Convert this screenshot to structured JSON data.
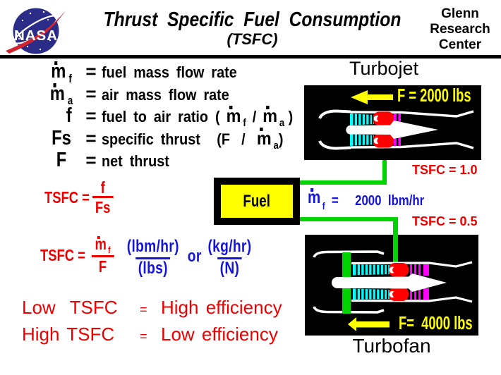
{
  "colors": {
    "text_red": "#ee0000",
    "text_blue": "#1414dd",
    "fuel_line_green": "#00d400",
    "engine_yellow": "#ffff00",
    "compressor_cyan": "#00ffff",
    "combustor_red": "#ff0000",
    "turbine_magenta": "#ff00ff",
    "logo_navy": "#2b2b88",
    "logo_swoosh_red": "#cf2330"
  },
  "header": {
    "logo_text": "NASA",
    "title": "Thrust  Specific  Fuel  Consumption",
    "subtitle": "(TSFC)",
    "org_lines": {
      "l1": "Glenn",
      "l2": "Research",
      "l3": "Center"
    }
  },
  "definitions": [
    {
      "sym": [
        {
          "t": "mdot",
          "base": "m",
          "sub": "f"
        }
      ],
      "eq": "=",
      "rhs": [
        {
          "t": "txt",
          "v": "fuel mass flow rate"
        }
      ]
    },
    {
      "sym": [
        {
          "t": "mdot",
          "base": "m",
          "sub": "a"
        }
      ],
      "eq": "=",
      "rhs": [
        {
          "t": "txt",
          "v": "air mass flow rate"
        }
      ]
    },
    {
      "sym": [
        {
          "t": "txt",
          "v": "f"
        }
      ],
      "eq": "=",
      "rhs": [
        {
          "t": "txt",
          "v": "fuel to air ratio ("
        },
        {
          "t": "gap",
          "w": 10
        },
        {
          "t": "mdot",
          "base": "m",
          "sub": "f"
        },
        {
          "t": "gap",
          "w": 10
        },
        {
          "t": "txt",
          "v": "/"
        },
        {
          "t": "gap",
          "w": 10
        },
        {
          "t": "mdot",
          "base": "m",
          "sub": "a"
        },
        {
          "t": "gap",
          "w": 6
        },
        {
          "t": "txt",
          "v": ")"
        }
      ]
    },
    {
      "sym": [
        {
          "t": "txt",
          "v": "Fs"
        }
      ],
      "eq": "=",
      "rhs": [
        {
          "t": "txt",
          "v": "specific thrust"
        },
        {
          "t": "gap",
          "w": 26
        },
        {
          "t": "txt",
          "v": "(F"
        },
        {
          "t": "gap",
          "w": 18
        },
        {
          "t": "txt",
          "v": "/"
        },
        {
          "t": "gap",
          "w": 18
        },
        {
          "t": "mdot",
          "base": "m",
          "sub": "a"
        },
        {
          "t": "txt",
          "v": ")"
        }
      ]
    },
    {
      "sym": [
        {
          "t": "txt",
          "v": "F"
        }
      ],
      "eq": "=",
      "rhs": [
        {
          "t": "txt",
          "v": "net thrust"
        }
      ]
    }
  ],
  "equation1": {
    "lhs": "TSFC =",
    "num": [
      {
        "t": "txt",
        "v": "f"
      }
    ],
    "den": [
      {
        "t": "txt",
        "v": "Fs"
      }
    ]
  },
  "equation2": {
    "lhs": "TSFC =",
    "num": [
      {
        "t": "mdot",
        "base": "m",
        "sub": "f"
      }
    ],
    "den": [
      {
        "t": "txt",
        "v": "F"
      }
    ],
    "unit1_num": "(lbm/hr)",
    "unit1_den": "(lbs)",
    "or": "or",
    "unit2_num": "(kg/hr)",
    "unit2_den": "(N)"
  },
  "conclusions": {
    "row1": {
      "lhs": "Low  TSFC",
      "eq": "=",
      "rhs": "High efficiency"
    },
    "row2": {
      "lhs": "High TSFC",
      "eq": "=",
      "rhs": "Low efficiency"
    }
  },
  "turbojet": {
    "label": "Turbojet",
    "thrust": "F = 2000 lbs",
    "tsfc": "TSFC = 1.0"
  },
  "fuel": {
    "label": "Fuel",
    "flow": [
      {
        "t": "mdot",
        "base": "m",
        "sub": "f"
      },
      {
        "t": "txt",
        "v": "  =     2000  lbm/hr"
      }
    ]
  },
  "turbofan": {
    "label": "Turbofan",
    "thrust": "F=  4000 lbs",
    "tsfc": "TSFC = 0.5"
  }
}
